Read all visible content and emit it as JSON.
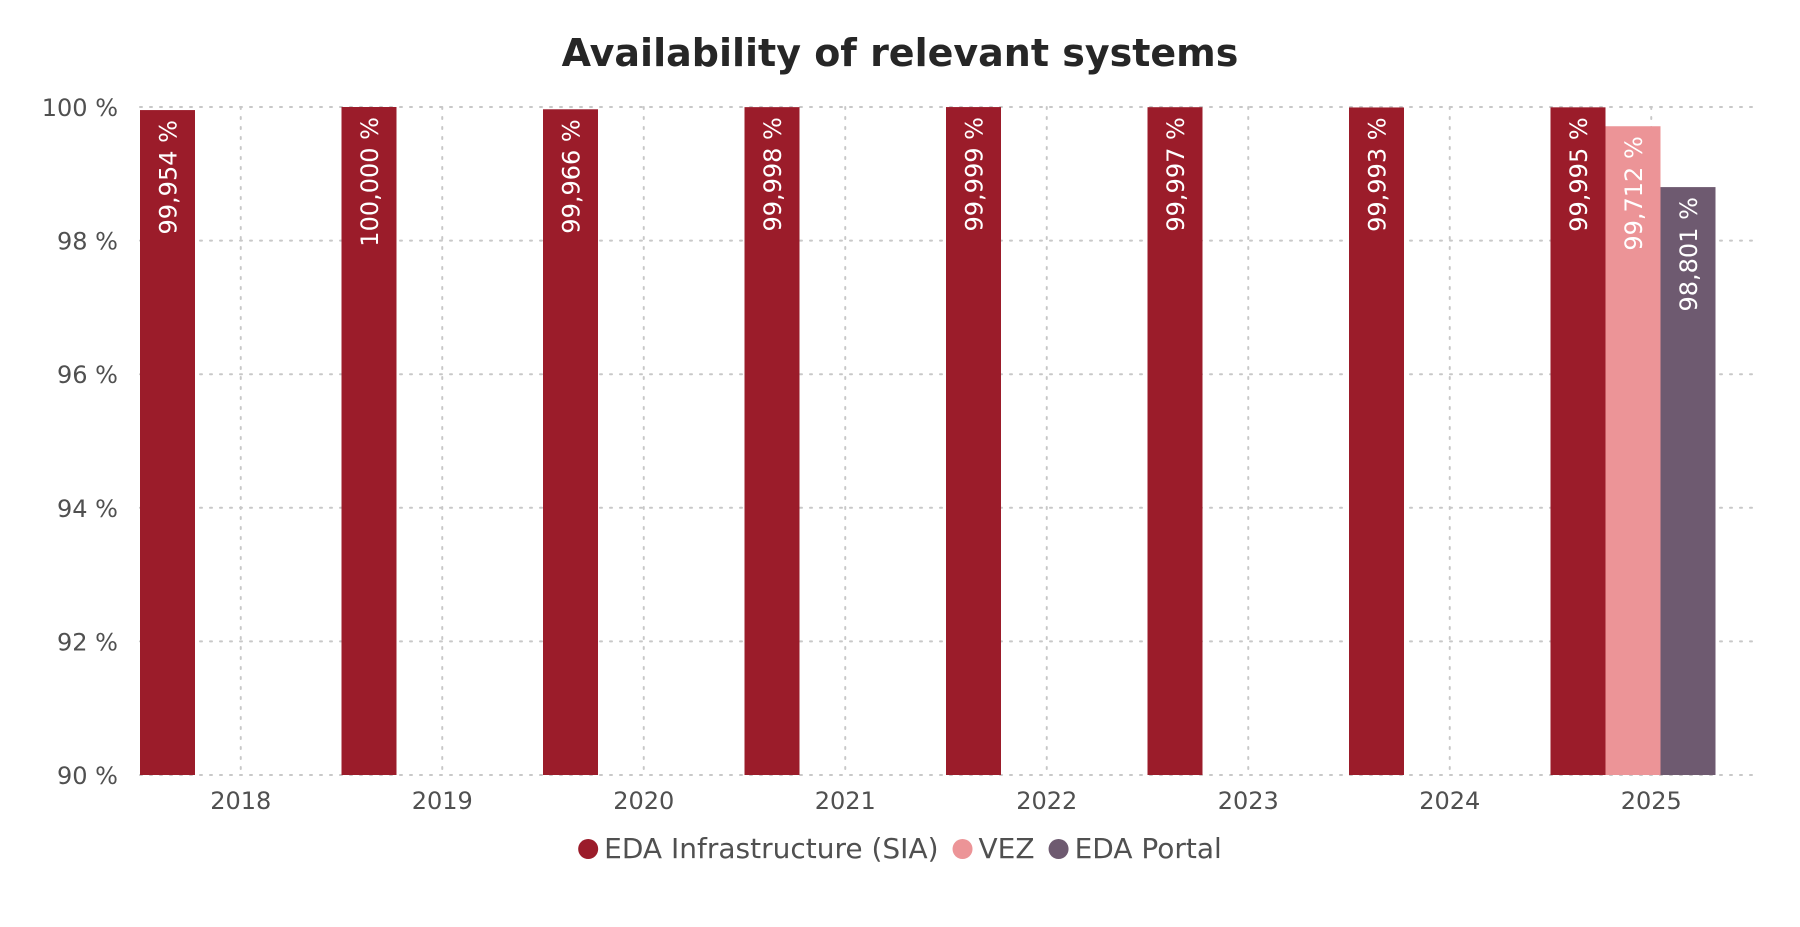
{
  "chart_data": {
    "type": "bar",
    "title": "Availability of relevant systems",
    "xlabel": "",
    "ylabel": "",
    "ylim": [
      90,
      100
    ],
    "yticks": [
      90,
      92,
      94,
      96,
      98,
      100
    ],
    "ytick_labels": [
      "90 %",
      "92 %",
      "94 %",
      "96 %",
      "98 %",
      "100 %"
    ],
    "categories": [
      "2018",
      "2019",
      "2020",
      "2021",
      "2022",
      "2023",
      "2024",
      "2025"
    ],
    "grid": true,
    "legend_position": "bottom-center",
    "series": [
      {
        "name": "EDA Infrastructure (SIA)",
        "color": "#9b1c2a",
        "label_color": "#ffffff",
        "values": [
          99.954,
          100.0,
          99.966,
          99.998,
          99.999,
          99.997,
          99.993,
          99.995
        ],
        "labels": [
          "99,954 %",
          "100,000 %",
          "99,966 %",
          "99,998 %",
          "99,999 %",
          "99,997 %",
          "99,993 %",
          "99,995 %"
        ]
      },
      {
        "name": "VEZ",
        "color": "#ec9497",
        "label_color": "#ffffff",
        "values": [
          null,
          null,
          null,
          null,
          null,
          null,
          null,
          99.712
        ],
        "labels": [
          null,
          null,
          null,
          null,
          null,
          null,
          null,
          "99,712 %"
        ]
      },
      {
        "name": "EDA Portal",
        "color": "#6e5a70",
        "label_color": "#ffffff",
        "values": [
          null,
          null,
          null,
          null,
          null,
          null,
          null,
          98.801
        ],
        "labels": [
          null,
          null,
          null,
          null,
          null,
          null,
          null,
          "98,801 %"
        ]
      }
    ]
  }
}
